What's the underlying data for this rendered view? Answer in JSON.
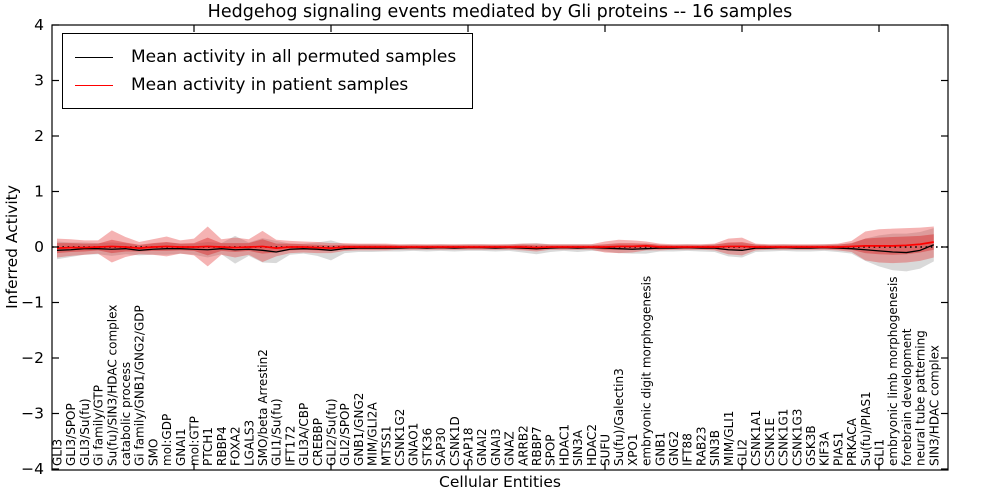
{
  "figure": {
    "title": "Hedgehog signaling events mediated by Gli proteins -- 16 samples",
    "xlabel": "Cellular Entities",
    "ylabel": "Inferred Activity"
  },
  "legend": {
    "items": [
      {
        "label": "Mean activity in all permuted samples",
        "color": "#000000"
      },
      {
        "label": "Mean activity in patient samples",
        "color": "#ff0000"
      }
    ],
    "position": "upper left"
  },
  "chart_data": {
    "type": "line",
    "title": "Hedgehog signaling events mediated by Gli proteins -- 16 samples",
    "xlabel": "Cellular Entities",
    "ylabel": "Inferred Activity",
    "ylim": [
      -4,
      4
    ],
    "y_ticks": [
      -4,
      -3,
      -2,
      -1,
      0,
      1,
      2,
      3,
      4
    ],
    "x_major_tick_positions": [
      10,
      20,
      30,
      40,
      50,
      60
    ],
    "grid": false,
    "legend_position": "upper left",
    "zero_line": {
      "y": 0,
      "style": "dotted",
      "color": "#000000"
    },
    "categories": [
      "GLI3",
      "GLI3/SPOP",
      "GLI3/Su(fu)",
      "Gi family/GTP",
      "Su(fu)/SIN3/HDAC complex",
      "catabolic process",
      "Gi family/GNB1/GNG2/GDP",
      "SMO",
      "mol:GDP",
      "GNAI1",
      "mol:GTP",
      "PTCH1",
      "RBBP4",
      "FOXA2",
      "LGALS3",
      "SMO/beta Arrestin2",
      "GLI1/Su(fu)",
      "IFT172",
      "GLI3A/CBP",
      "CREBBP",
      "GLI2/Su(fu)",
      "GLI2/SPOP",
      "GNB1/GNG2",
      "MIM/GLI2A",
      "MTSS1",
      "CSNK1G2",
      "GNAO1",
      "STK36",
      "SAP30",
      "CSNK1D",
      "SAP18",
      "GNAI2",
      "GNAI3",
      "GNAZ",
      "ARRB2",
      "RBBP7",
      "SPOP",
      "HDAC1",
      "SIN3A",
      "HDAC2",
      "SUFU",
      "Su(fu)/Galectin3",
      "XPO1",
      "embryonic digit morphogenesis",
      "GNB1",
      "GNG2",
      "IFT88",
      "RAB23",
      "SIN3B",
      "MIM/GLI1",
      "GLI2",
      "CSNK1A1",
      "CSNK1E",
      "CSNK1G1",
      "CSNK1G3",
      "GSK3B",
      "KIF3A",
      "PIAS1",
      "PRKACA",
      "Su(fu)/PIAS1",
      "GLI1",
      "embryonic limb morphogenesis",
      "forebrain development",
      "neural tube patterning",
      "SIN3/HDAC complex"
    ],
    "series": [
      {
        "name": "Mean activity in all permuted samples",
        "color": "#000000",
        "values": [
          -0.06,
          -0.05,
          -0.03,
          -0.03,
          -0.04,
          -0.03,
          -0.06,
          -0.04,
          -0.03,
          -0.03,
          -0.04,
          -0.05,
          -0.03,
          -0.05,
          -0.04,
          -0.06,
          -0.09,
          -0.04,
          -0.03,
          -0.04,
          -0.06,
          -0.03,
          -0.02,
          -0.02,
          -0.02,
          -0.02,
          -0.01,
          -0.02,
          -0.01,
          -0.02,
          -0.01,
          -0.01,
          -0.02,
          -0.01,
          -0.02,
          -0.03,
          -0.02,
          -0.01,
          -0.02,
          -0.01,
          -0.02,
          -0.03,
          -0.04,
          -0.03,
          -0.02,
          -0.02,
          -0.01,
          -0.02,
          -0.02,
          -0.05,
          -0.06,
          -0.02,
          -0.02,
          -0.01,
          -0.02,
          -0.02,
          -0.01,
          -0.02,
          -0.03,
          -0.05,
          -0.07,
          -0.09,
          -0.1,
          -0.06,
          0.04
        ]
      },
      {
        "name": "Mean activity in patient samples",
        "color": "#ff0000",
        "values": [
          -0.02,
          -0.01,
          -0.01,
          0.0,
          0.01,
          0.0,
          -0.02,
          0.0,
          0.01,
          0.0,
          0.0,
          0.01,
          0.0,
          -0.01,
          0.0,
          0.01,
          -0.02,
          0.0,
          0.0,
          -0.01,
          -0.02,
          0.0,
          0.0,
          0.0,
          0.0,
          0.0,
          0.0,
          0.0,
          0.0,
          0.0,
          0.0,
          0.0,
          0.0,
          0.0,
          0.0,
          -0.01,
          0.0,
          0.0,
          0.0,
          0.0,
          0.0,
          0.01,
          0.01,
          0.02,
          0.0,
          0.0,
          0.0,
          0.0,
          0.0,
          0.01,
          0.01,
          0.0,
          0.0,
          0.0,
          0.0,
          0.0,
          0.0,
          0.0,
          0.01,
          0.02,
          0.02,
          0.02,
          0.03,
          0.05,
          0.09
        ]
      }
    ],
    "bands": [
      {
        "name": "permuted samples ± std",
        "color": "rgba(128,128,128,0.30)",
        "center_series": 0,
        "half_widths": [
          0.16,
          0.13,
          0.11,
          0.1,
          0.12,
          0.1,
          0.09,
          0.1,
          0.11,
          0.09,
          0.1,
          0.14,
          0.1,
          0.25,
          0.12,
          0.22,
          0.2,
          0.1,
          0.09,
          0.12,
          0.18,
          0.08,
          0.07,
          0.07,
          0.06,
          0.06,
          0.06,
          0.06,
          0.06,
          0.06,
          0.06,
          0.06,
          0.06,
          0.06,
          0.08,
          0.1,
          0.07,
          0.06,
          0.07,
          0.06,
          0.06,
          0.08,
          0.08,
          0.09,
          0.06,
          0.06,
          0.06,
          0.06,
          0.07,
          0.12,
          0.13,
          0.07,
          0.06,
          0.06,
          0.06,
          0.06,
          0.06,
          0.07,
          0.09,
          0.2,
          0.28,
          0.33,
          0.34,
          0.33,
          0.3
        ]
      },
      {
        "name": "patient samples ± std (outer)",
        "color": "rgba(230,55,55,0.38)",
        "center_series": 1,
        "half_widths": [
          0.17,
          0.15,
          0.13,
          0.12,
          0.29,
          0.18,
          0.11,
          0.14,
          0.18,
          0.12,
          0.15,
          0.36,
          0.14,
          0.18,
          0.14,
          0.28,
          0.15,
          0.11,
          0.1,
          0.1,
          0.09,
          0.07,
          0.06,
          0.06,
          0.06,
          0.05,
          0.05,
          0.05,
          0.05,
          0.05,
          0.05,
          0.05,
          0.05,
          0.05,
          0.06,
          0.07,
          0.05,
          0.05,
          0.05,
          0.05,
          0.1,
          0.12,
          0.11,
          0.08,
          0.06,
          0.05,
          0.05,
          0.05,
          0.06,
          0.14,
          0.16,
          0.06,
          0.05,
          0.05,
          0.05,
          0.05,
          0.05,
          0.06,
          0.1,
          0.26,
          0.3,
          0.31,
          0.31,
          0.3,
          0.28
        ]
      },
      {
        "name": "patient samples ± std (inner)",
        "color": "rgba(215,25,25,0.40)",
        "center_series": 1,
        "half_widths": [
          0.09,
          0.08,
          0.07,
          0.06,
          0.12,
          0.08,
          0.06,
          0.07,
          0.08,
          0.06,
          0.07,
          0.16,
          0.07,
          0.08,
          0.07,
          0.13,
          0.08,
          0.06,
          0.05,
          0.05,
          0.05,
          0.04,
          0.04,
          0.04,
          0.04,
          0.03,
          0.03,
          0.03,
          0.03,
          0.03,
          0.03,
          0.03,
          0.03,
          0.03,
          0.04,
          0.04,
          0.03,
          0.03,
          0.03,
          0.03,
          0.05,
          0.06,
          0.06,
          0.04,
          0.04,
          0.03,
          0.03,
          0.03,
          0.04,
          0.07,
          0.08,
          0.04,
          0.03,
          0.03,
          0.03,
          0.03,
          0.03,
          0.04,
          0.06,
          0.13,
          0.15,
          0.16,
          0.16,
          0.15,
          0.14
        ]
      }
    ]
  }
}
